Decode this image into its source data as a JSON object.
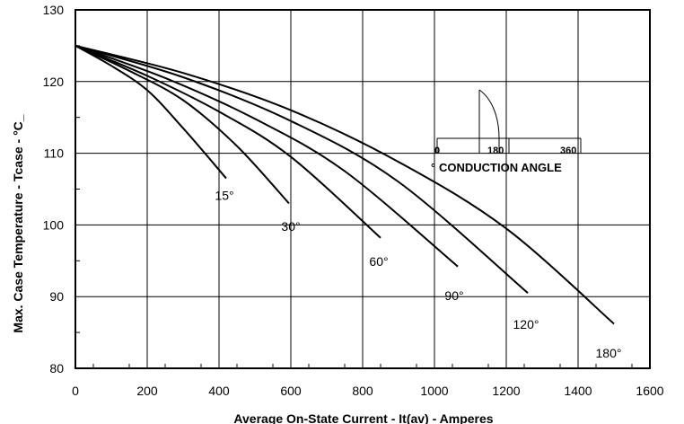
{
  "chart_data": {
    "type": "line",
    "xlabel": "Average On-State Current - It(av) - Amperes",
    "ylabel": "Max. Case Temperature - Tcase - °C_",
    "xlim": [
      0,
      1600
    ],
    "ylim": [
      80,
      130
    ],
    "x_ticks": [
      "0",
      "200",
      "400",
      "600",
      "800",
      "1000",
      "1200",
      "1400",
      "1600"
    ],
    "y_ticks": [
      "80",
      "90",
      "100",
      "110",
      "120",
      "130"
    ],
    "grid": true,
    "series": [
      {
        "name": "15°",
        "label_at": [
          415,
          103.5
        ],
        "points": [
          [
            0,
            125
          ],
          [
            100,
            122.2
          ],
          [
            200,
            118.8
          ],
          [
            300,
            113.5
          ],
          [
            420,
            106.5
          ]
        ]
      },
      {
        "name": "30°",
        "label_at": [
          600,
          99.2
        ],
        "points": [
          [
            0,
            125
          ],
          [
            150,
            121.5
          ],
          [
            300,
            117.4
          ],
          [
            450,
            111
          ],
          [
            595,
            103
          ]
        ]
      },
      {
        "name": "60°",
        "label_at": [
          845,
          94.3
        ],
        "points": [
          [
            0,
            125
          ],
          [
            200,
            120.8
          ],
          [
            400,
            115.8
          ],
          [
            600,
            109.5
          ],
          [
            850,
            98.2
          ]
        ]
      },
      {
        "name": "90°",
        "label_at": [
          1055,
          89.5
        ],
        "points": [
          [
            0,
            125
          ],
          [
            250,
            120.5
          ],
          [
            500,
            114.8
          ],
          [
            750,
            107.5
          ],
          [
            1065,
            94.2
          ]
        ]
      },
      {
        "name": "120°",
        "label_at": [
          1255,
          85.5
        ],
        "points": [
          [
            0,
            125
          ],
          [
            300,
            120.6
          ],
          [
            600,
            114.5
          ],
          [
            900,
            106
          ],
          [
            1260,
            90.5
          ]
        ]
      },
      {
        "name": "180°",
        "label_at": [
          1485,
          81.5
        ],
        "points": [
          [
            0,
            125
          ],
          [
            300,
            121.2
          ],
          [
            600,
            116
          ],
          [
            900,
            108.8
          ],
          [
            1200,
            99.5
          ],
          [
            1500,
            86.2
          ]
        ]
      }
    ],
    "inset": {
      "title": "CONDUCTION ANGLE",
      "scale_labels": [
        "0",
        "180",
        "360"
      ],
      "mark_label": "°"
    }
  }
}
